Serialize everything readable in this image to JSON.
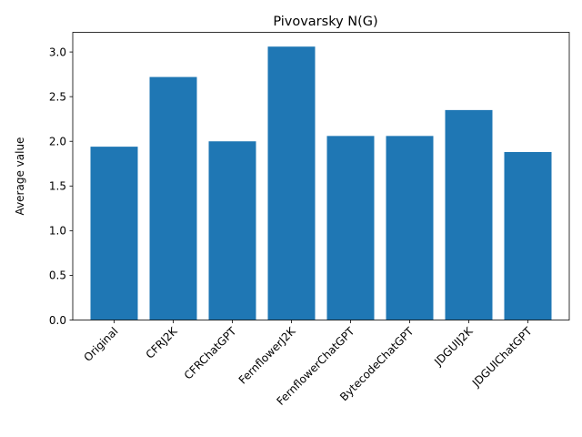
{
  "chart_data": {
    "type": "bar",
    "title": "Pivovarsky N(G)",
    "xlabel": "",
    "ylabel": "Average value",
    "categories": [
      "Original",
      "CFRJ2K",
      "CFRChatGPT",
      "FernflowerJ2K",
      "FernflowerChatGPT",
      "BytecodeChatGPT",
      "JDGUIJ2K",
      "JDGUIChatGPT"
    ],
    "values": [
      1.94,
      2.72,
      2.0,
      3.06,
      2.06,
      2.06,
      2.35,
      1.88
    ],
    "ylim": [
      0,
      3.22
    ],
    "yticks": [
      "0.0",
      "0.5",
      "1.0",
      "1.5",
      "2.0",
      "2.5",
      "3.0"
    ],
    "bar_color": "#1f77b4",
    "grid": false,
    "legend": "none"
  }
}
